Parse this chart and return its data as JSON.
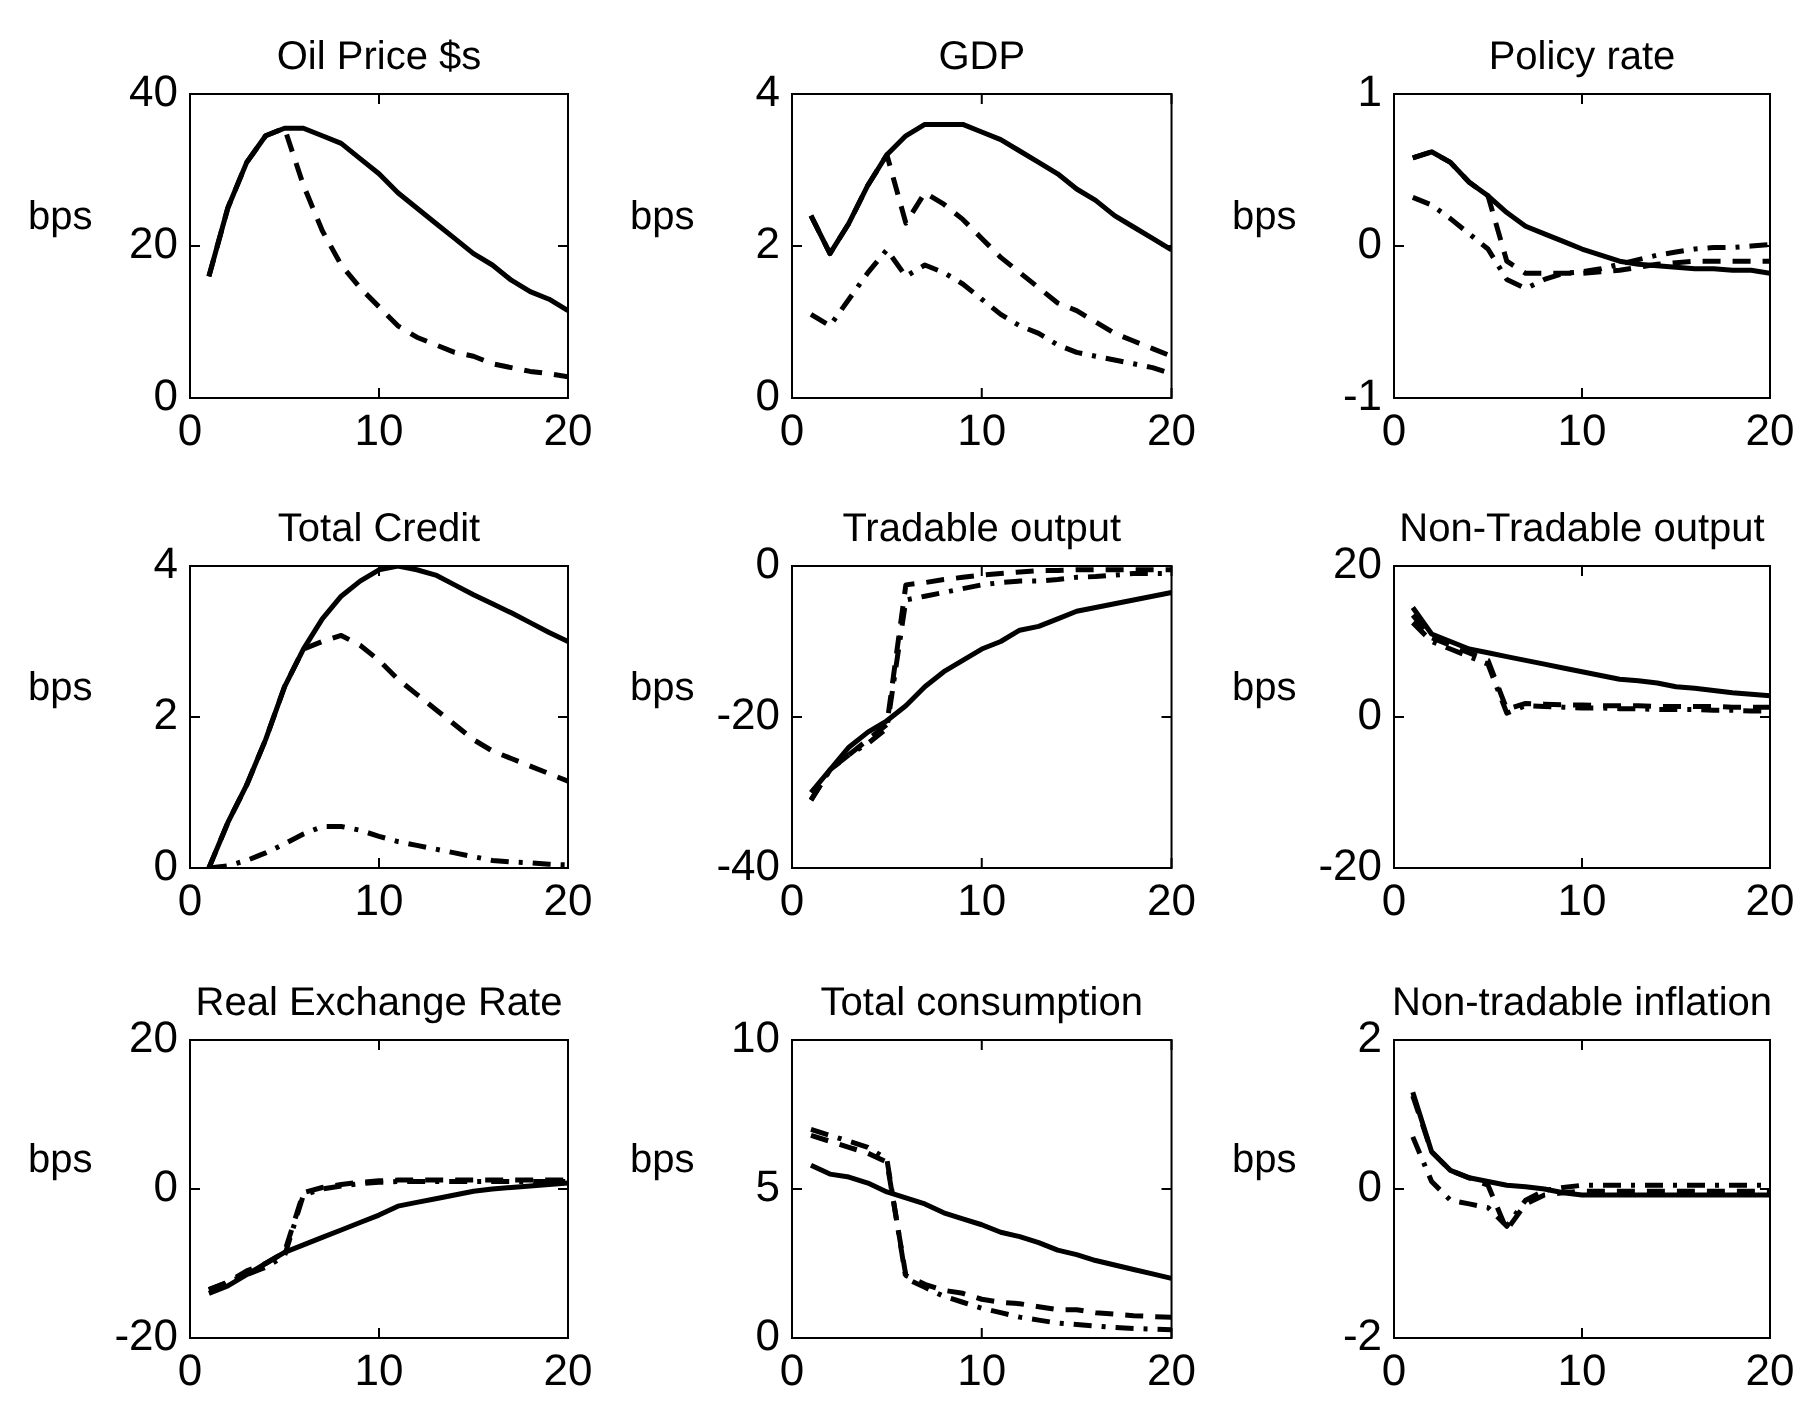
{
  "chart_data": [
    {
      "type": "line",
      "title": "Oil Price $s",
      "ylabel": "bps",
      "x": [
        1,
        2,
        3,
        4,
        5,
        6,
        7,
        8,
        9,
        10,
        11,
        12,
        13,
        14,
        15,
        16,
        17,
        18,
        19,
        20
      ],
      "xlim": [
        0,
        20
      ],
      "xticks": [
        0,
        10,
        20
      ],
      "ylim": [
        0,
        40
      ],
      "yticks": [
        0,
        20,
        40
      ],
      "series": [
        {
          "color": "#000000",
          "line_style": "solid",
          "values": [
            16,
            25,
            31,
            34.5,
            35.5,
            35.5,
            34.5,
            33.5,
            31.5,
            29.5,
            27,
            25,
            23,
            21,
            19,
            17.5,
            15.5,
            14,
            13,
            11.5
          ]
        },
        {
          "color": "#000000",
          "line_style": "dashed",
          "values": [
            16,
            25,
            31,
            34.5,
            35.5,
            28,
            22,
            17.5,
            14.5,
            12,
            9.5,
            8,
            7,
            6,
            5.5,
            4.5,
            4,
            3.5,
            3.2,
            2.8
          ]
        }
      ]
    },
    {
      "type": "line",
      "title": "GDP",
      "ylabel": "bps",
      "x": [
        1,
        2,
        3,
        4,
        5,
        6,
        7,
        8,
        9,
        10,
        11,
        12,
        13,
        14,
        15,
        16,
        17,
        18,
        19,
        20
      ],
      "xlim": [
        0,
        20
      ],
      "xticks": [
        0,
        10,
        20
      ],
      "ylim": [
        0,
        4
      ],
      "yticks": [
        0,
        2,
        4
      ],
      "series": [
        {
          "color": "#000000",
          "line_style": "solid",
          "values": [
            2.4,
            1.9,
            2.3,
            2.8,
            3.2,
            3.45,
            3.6,
            3.6,
            3.6,
            3.5,
            3.4,
            3.25,
            3.1,
            2.95,
            2.75,
            2.6,
            2.4,
            2.25,
            2.1,
            1.95
          ]
        },
        {
          "color": "#000000",
          "line_style": "dashed",
          "values": [
            2.4,
            1.9,
            2.3,
            2.8,
            3.2,
            2.3,
            2.7,
            2.55,
            2.35,
            2.1,
            1.85,
            1.65,
            1.45,
            1.25,
            1.15,
            1.0,
            0.85,
            0.75,
            0.65,
            0.55
          ]
        },
        {
          "color": "#000000",
          "line_style": "dashdot",
          "values": [
            1.1,
            0.95,
            1.3,
            1.65,
            1.95,
            1.6,
            1.75,
            1.65,
            1.5,
            1.3,
            1.1,
            0.95,
            0.85,
            0.7,
            0.6,
            0.55,
            0.5,
            0.45,
            0.4,
            0.32
          ]
        }
      ]
    },
    {
      "type": "line",
      "title": "Policy rate",
      "ylabel": "bps",
      "x": [
        1,
        2,
        3,
        4,
        5,
        6,
        7,
        8,
        9,
        10,
        11,
        12,
        13,
        14,
        15,
        16,
        17,
        18,
        19,
        20
      ],
      "xlim": [
        0,
        20
      ],
      "xticks": [
        0,
        10,
        20
      ],
      "ylim": [
        -1,
        1
      ],
      "yticks": [
        -1,
        0,
        1
      ],
      "series": [
        {
          "color": "#000000",
          "line_style": "solid",
          "values": [
            0.58,
            0.62,
            0.55,
            0.42,
            0.33,
            0.22,
            0.13,
            0.08,
            0.03,
            -0.02,
            -0.06,
            -0.1,
            -0.12,
            -0.13,
            -0.14,
            -0.15,
            -0.15,
            -0.16,
            -0.16,
            -0.18
          ]
        },
        {
          "color": "#000000",
          "line_style": "dashed",
          "values": [
            0.58,
            0.62,
            0.55,
            0.42,
            0.33,
            -0.1,
            -0.18,
            -0.18,
            -0.18,
            -0.18,
            -0.17,
            -0.16,
            -0.14,
            -0.12,
            -0.11,
            -0.1,
            -0.1,
            -0.1,
            -0.1,
            -0.1
          ]
        },
        {
          "color": "#000000",
          "line_style": "dashdot",
          "values": [
            0.32,
            0.27,
            0.18,
            0.08,
            -0.02,
            -0.22,
            -0.28,
            -0.22,
            -0.18,
            -0.17,
            -0.15,
            -0.12,
            -0.09,
            -0.06,
            -0.04,
            -0.02,
            -0.01,
            -0.01,
            0,
            0.01
          ]
        }
      ]
    },
    {
      "type": "line",
      "title": "Total Credit",
      "ylabel": "bps",
      "x": [
        1,
        2,
        3,
        4,
        5,
        6,
        7,
        8,
        9,
        10,
        11,
        12,
        13,
        14,
        15,
        16,
        17,
        18,
        19,
        20
      ],
      "xlim": [
        0,
        20
      ],
      "xticks": [
        0,
        10,
        20
      ],
      "ylim": [
        0,
        4
      ],
      "yticks": [
        0,
        2,
        4
      ],
      "series": [
        {
          "color": "#000000",
          "line_style": "solid",
          "values": [
            0,
            0.6,
            1.1,
            1.7,
            2.4,
            2.9,
            3.3,
            3.6,
            3.8,
            3.95,
            4.0,
            3.95,
            3.88,
            3.75,
            3.62,
            3.5,
            3.38,
            3.25,
            3.12,
            3.0
          ]
        },
        {
          "color": "#000000",
          "line_style": "dashed",
          "values": [
            0,
            0.6,
            1.1,
            1.7,
            2.4,
            2.9,
            3.0,
            3.08,
            2.95,
            2.75,
            2.5,
            2.3,
            2.1,
            1.9,
            1.7,
            1.55,
            1.45,
            1.35,
            1.25,
            1.15
          ]
        },
        {
          "color": "#000000",
          "line_style": "dashdot",
          "values": [
            0,
            0.03,
            0.1,
            0.2,
            0.32,
            0.45,
            0.55,
            0.55,
            0.5,
            0.42,
            0.35,
            0.3,
            0.25,
            0.2,
            0.15,
            0.1,
            0.08,
            0.07,
            0.05,
            0.04
          ]
        }
      ]
    },
    {
      "type": "line",
      "title": "Tradable output",
      "ylabel": "bps",
      "x": [
        1,
        2,
        3,
        4,
        5,
        6,
        7,
        8,
        9,
        10,
        11,
        12,
        13,
        14,
        15,
        16,
        17,
        18,
        19,
        20
      ],
      "xlim": [
        0,
        20
      ],
      "xticks": [
        0,
        10,
        20
      ],
      "ylim": [
        -40,
        0
      ],
      "yticks": [
        -40,
        -20,
        0
      ],
      "series": [
        {
          "color": "#000000",
          "line_style": "solid",
          "values": [
            -30,
            -27,
            -24,
            -22,
            -20.5,
            -18.5,
            -16,
            -14,
            -12.5,
            -11,
            -10,
            -8.5,
            -8,
            -7,
            -6,
            -5.5,
            -5,
            -4.5,
            -4,
            -3.5
          ]
        },
        {
          "color": "#000000",
          "line_style": "dashed",
          "values": [
            -31,
            -27,
            -25,
            -23,
            -21,
            -2.5,
            -2.2,
            -1.8,
            -1.5,
            -1.2,
            -1,
            -0.8,
            -0.6,
            -0.6,
            -0.5,
            -0.5,
            -0.5,
            -0.5,
            -0.5,
            -0.5
          ]
        },
        {
          "color": "#000000",
          "line_style": "dashdot",
          "values": [
            -31,
            -27,
            -25,
            -23.5,
            -21.5,
            -4.5,
            -4,
            -3.5,
            -3,
            -2.5,
            -2.2,
            -2,
            -2,
            -1.8,
            -1.5,
            -1.4,
            -1.2,
            -1,
            -1,
            -1
          ]
        }
      ]
    },
    {
      "type": "line",
      "title": "Non-Tradable output",
      "ylabel": "bps",
      "x": [
        1,
        2,
        3,
        4,
        5,
        6,
        7,
        8,
        9,
        10,
        11,
        12,
        13,
        14,
        15,
        16,
        17,
        18,
        19,
        20
      ],
      "xlim": [
        0,
        20
      ],
      "xticks": [
        0,
        10,
        20
      ],
      "ylim": [
        -20,
        20
      ],
      "yticks": [
        -20,
        0,
        20
      ],
      "series": [
        {
          "color": "#000000",
          "line_style": "solid",
          "values": [
            14.5,
            11,
            10,
            9,
            8.5,
            8,
            7.5,
            7,
            6.5,
            6,
            5.5,
            5,
            4.8,
            4.5,
            4,
            3.8,
            3.5,
            3.2,
            3,
            2.8
          ]
        },
        {
          "color": "#000000",
          "line_style": "dashed",
          "values": [
            13.5,
            10.5,
            9.5,
            8.5,
            7.5,
            1,
            1.8,
            1.7,
            1.6,
            1.6,
            1.5,
            1.5,
            1.5,
            1.4,
            1.4,
            1.4,
            1.4,
            1.3,
            1.3,
            1.3
          ]
        },
        {
          "color": "#000000",
          "line_style": "dashdot",
          "values": [
            12.5,
            10,
            9,
            8,
            7,
            0.5,
            1.5,
            1.4,
            1.3,
            1.2,
            1.2,
            1.1,
            1.1,
            1,
            1,
            1,
            0.9,
            0.9,
            0.8,
            0.8
          ]
        }
      ]
    },
    {
      "type": "line",
      "title": "Real Exchange Rate",
      "ylabel": "bps",
      "x": [
        1,
        2,
        3,
        4,
        5,
        6,
        7,
        8,
        9,
        10,
        11,
        12,
        13,
        14,
        15,
        16,
        17,
        18,
        19,
        20
      ],
      "xlim": [
        0,
        20
      ],
      "xticks": [
        0,
        10,
        20
      ],
      "ylim": [
        -20,
        20
      ],
      "yticks": [
        -20,
        0,
        20
      ],
      "series": [
        {
          "color": "#000000",
          "line_style": "solid",
          "values": [
            -14,
            -13,
            -11.5,
            -10,
            -8.5,
            -7.5,
            -6.5,
            -5.5,
            -4.5,
            -3.5,
            -2.3,
            -1.8,
            -1.3,
            -0.8,
            -0.3,
            0,
            0.2,
            0.4,
            0.6,
            0.8
          ]
        },
        {
          "color": "#000000",
          "line_style": "dashed",
          "values": [
            -13.5,
            -12.5,
            -11,
            -10,
            -8.5,
            -0.5,
            0.2,
            0.6,
            0.9,
            1.1,
            1.2,
            1.2,
            1.2,
            1.2,
            1.2,
            1.2,
            1.2,
            1.2,
            1.2,
            1.2
          ]
        },
        {
          "color": "#000000",
          "line_style": "dashdot",
          "values": [
            -13.5,
            -12.5,
            -11.5,
            -10.5,
            -9,
            -0.8,
            0,
            0.4,
            0.7,
            0.9,
            1,
            1,
            1,
            1,
            1,
            1,
            1,
            1,
            1,
            1
          ]
        }
      ]
    },
    {
      "type": "line",
      "title": "Total consumption",
      "ylabel": "bps",
      "x": [
        1,
        2,
        3,
        4,
        5,
        6,
        7,
        8,
        9,
        10,
        11,
        12,
        13,
        14,
        15,
        16,
        17,
        18,
        19,
        20
      ],
      "xlim": [
        0,
        20
      ],
      "xticks": [
        0,
        10,
        20
      ],
      "ylim": [
        0,
        10
      ],
      "yticks": [
        0,
        5,
        10
      ],
      "series": [
        {
          "color": "#000000",
          "line_style": "solid",
          "values": [
            5.8,
            5.5,
            5.4,
            5.2,
            4.9,
            4.7,
            4.5,
            4.2,
            4.0,
            3.8,
            3.55,
            3.4,
            3.2,
            2.95,
            2.8,
            2.6,
            2.45,
            2.3,
            2.15,
            2.0
          ]
        },
        {
          "color": "#000000",
          "line_style": "dashed",
          "values": [
            6.8,
            6.6,
            6.4,
            6.2,
            5.9,
            2.1,
            1.8,
            1.6,
            1.5,
            1.3,
            1.2,
            1.15,
            1.05,
            0.95,
            0.95,
            0.85,
            0.8,
            0.75,
            0.72,
            0.7
          ]
        },
        {
          "color": "#000000",
          "line_style": "dashdot",
          "values": [
            7,
            6.8,
            6.6,
            6.4,
            6,
            2,
            1.7,
            1.4,
            1.2,
            1.0,
            0.85,
            0.7,
            0.6,
            0.5,
            0.45,
            0.4,
            0.35,
            0.32,
            0.3,
            0.28
          ]
        }
      ]
    },
    {
      "type": "line",
      "title": "Non-tradable inflation",
      "ylabel": "bps",
      "x": [
        1,
        2,
        3,
        4,
        5,
        6,
        7,
        8,
        9,
        10,
        11,
        12,
        13,
        14,
        15,
        16,
        17,
        18,
        19,
        20
      ],
      "xlim": [
        0,
        20
      ],
      "xticks": [
        0,
        10,
        20
      ],
      "ylim": [
        -2,
        2
      ],
      "yticks": [
        -2,
        0,
        2
      ],
      "series": [
        {
          "color": "#000000",
          "line_style": "solid",
          "values": [
            1.3,
            0.5,
            0.25,
            0.15,
            0.1,
            0.05,
            0.03,
            0,
            -0.05,
            -0.08,
            -0.08,
            -0.08,
            -0.08,
            -0.08,
            -0.08,
            -0.08,
            -0.08,
            -0.08,
            -0.08,
            -0.08
          ]
        },
        {
          "color": "#000000",
          "line_style": "dashed",
          "values": [
            1.25,
            0.5,
            0.25,
            0.15,
            0.05,
            -0.55,
            -0.2,
            -0.08,
            -0.05,
            -0.03,
            -0.03,
            -0.03,
            -0.03,
            -0.03,
            -0.03,
            -0.03,
            -0.03,
            -0.03,
            -0.03,
            -0.03
          ]
        },
        {
          "color": "#000000",
          "line_style": "dashdot",
          "values": [
            0.7,
            0.1,
            -0.15,
            -0.2,
            -0.25,
            -0.5,
            -0.15,
            -0.02,
            0.02,
            0.05,
            0.05,
            0.05,
            0.05,
            0.05,
            0.05,
            0.05,
            0.05,
            0.05,
            0.05,
            0.05
          ]
        }
      ]
    }
  ]
}
